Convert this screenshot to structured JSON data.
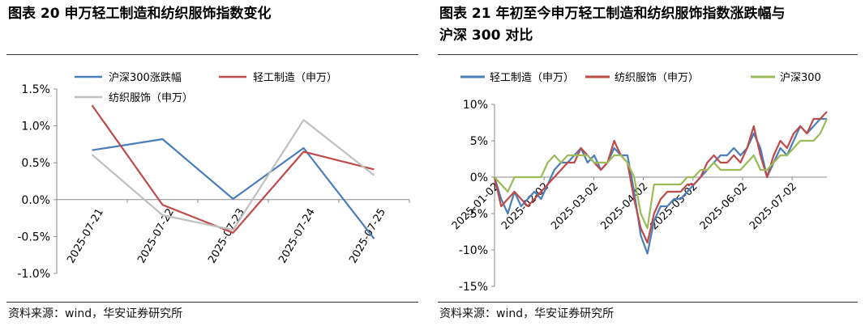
{
  "left": {
    "title": "图表 20 申万轻工制造和纺织服饰指数变化",
    "source": "资料来源：wind，华安证券研究所",
    "chart_data": {
      "type": "line",
      "categories": [
        "2025-07-21",
        "2025-07-22",
        "2025-07-23",
        "2025-07-24",
        "2025-07-25"
      ],
      "ylim": [
        -1.0,
        1.5
      ],
      "yticks": [
        "-1.0%",
        "-0.5%",
        "0.0%",
        "0.5%",
        "1.0%",
        "1.5%"
      ],
      "ytick_values": [
        -1.0,
        -0.5,
        0.0,
        0.5,
        1.0,
        1.5
      ],
      "legend_position": "top",
      "series": [
        {
          "name": "沪深300涨跌幅",
          "color": "#4A7EBB",
          "values": [
            0.67,
            0.82,
            0.01,
            0.7,
            -0.53
          ]
        },
        {
          "name": "轻工制造（申万）",
          "color": "#BE4B48",
          "values": [
            1.28,
            -0.07,
            -0.45,
            0.65,
            0.41
          ]
        },
        {
          "name": "纺织服饰（申万）",
          "color": "#BFBFBF",
          "values": [
            0.61,
            -0.21,
            -0.41,
            1.08,
            0.33
          ]
        }
      ]
    }
  },
  "right": {
    "title_line1": "图表 21 年初至今申万轻工制造和纺织服饰指数涨跌幅与",
    "title_line2": "沪深 300 对比",
    "source": "资料来源：wind，华安证券研究所",
    "chart_data": {
      "type": "line",
      "xticks": [
        "2025-01-02",
        "2025-02-02",
        "2025-03-02",
        "2025-04-02",
        "2025-05-02",
        "2025-06-02",
        "2025-07-02"
      ],
      "ylim": [
        -15,
        10
      ],
      "yticks": [
        "-15%",
        "-10%",
        "-5%",
        "0%",
        "5%",
        "10%"
      ],
      "ytick_values": [
        -15,
        -10,
        -5,
        0,
        5,
        10
      ],
      "legend_position": "top",
      "series": [
        {
          "name": "轻工制造（申万）",
          "color": "#4A7EBB",
          "values": [
            0,
            -3,
            -5,
            -2,
            -4,
            -3,
            -2,
            -3,
            -1,
            1,
            2,
            2,
            3,
            4,
            2,
            3,
            1,
            2,
            4,
            3,
            3,
            -2,
            -8,
            -10.5,
            -6,
            -4,
            -4,
            -3,
            -3,
            -2,
            -1,
            0,
            1,
            2,
            3,
            3,
            4,
            3,
            4,
            6,
            4,
            0,
            2,
            4,
            3,
            5,
            7,
            6,
            7,
            8,
            8
          ]
        },
        {
          "name": "纺织服饰（申万）",
          "color": "#BE4B48",
          "values": [
            0,
            -4,
            -3,
            -2,
            -3,
            -4,
            -3,
            -2,
            -1,
            0,
            1,
            2,
            2,
            4,
            3,
            2,
            1,
            2,
            5,
            3,
            2,
            -3,
            -7,
            -9,
            -5,
            -3,
            -2,
            -2,
            -2,
            -1,
            -1,
            0,
            2,
            3,
            2,
            2,
            3,
            2,
            4,
            7,
            3,
            0,
            3,
            5,
            4,
            6,
            7,
            6,
            8,
            8,
            9
          ]
        },
        {
          "name": "沪深300",
          "color": "#9BBB59",
          "values": [
            0,
            -1,
            -2,
            0,
            0,
            0,
            0,
            0,
            2,
            3,
            2,
            3,
            3,
            3,
            3,
            2,
            2,
            2,
            3,
            3,
            2,
            0,
            -5,
            -7,
            -1,
            -1,
            -1,
            -1,
            -1,
            0,
            0,
            1,
            1,
            2,
            1,
            1,
            1,
            1,
            2,
            3,
            1,
            1,
            2,
            3,
            3,
            4,
            5,
            5,
            5,
            6,
            8
          ]
        }
      ]
    }
  }
}
